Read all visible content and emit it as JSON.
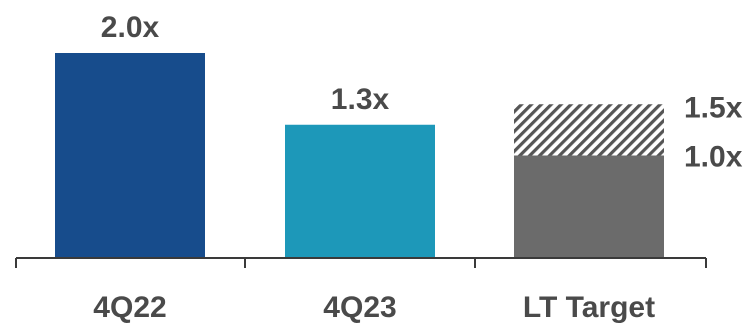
{
  "chart_data": {
    "type": "bar",
    "categories": [
      "4Q22",
      "4Q23",
      "LT Target"
    ],
    "values": [
      2.0,
      1.3,
      null
    ],
    "value_labels": [
      "2.0x",
      "1.3x",
      ""
    ],
    "target_range": {
      "category": "LT Target",
      "low": 1.0,
      "high": 1.5,
      "low_label": "1.0x",
      "high_label": "1.5x"
    },
    "colors": {
      "4Q22": "#174C8C",
      "4Q23": "#1D98B9",
      "target_solid": "#6B6B6B",
      "target_hatch": "#555555",
      "axis": "#3a3a3a",
      "text": "#4a4a4a"
    },
    "title": "",
    "xlabel": "",
    "ylabel": "",
    "ylim": [
      0,
      2.0
    ],
    "grid": false,
    "legend": "none"
  }
}
